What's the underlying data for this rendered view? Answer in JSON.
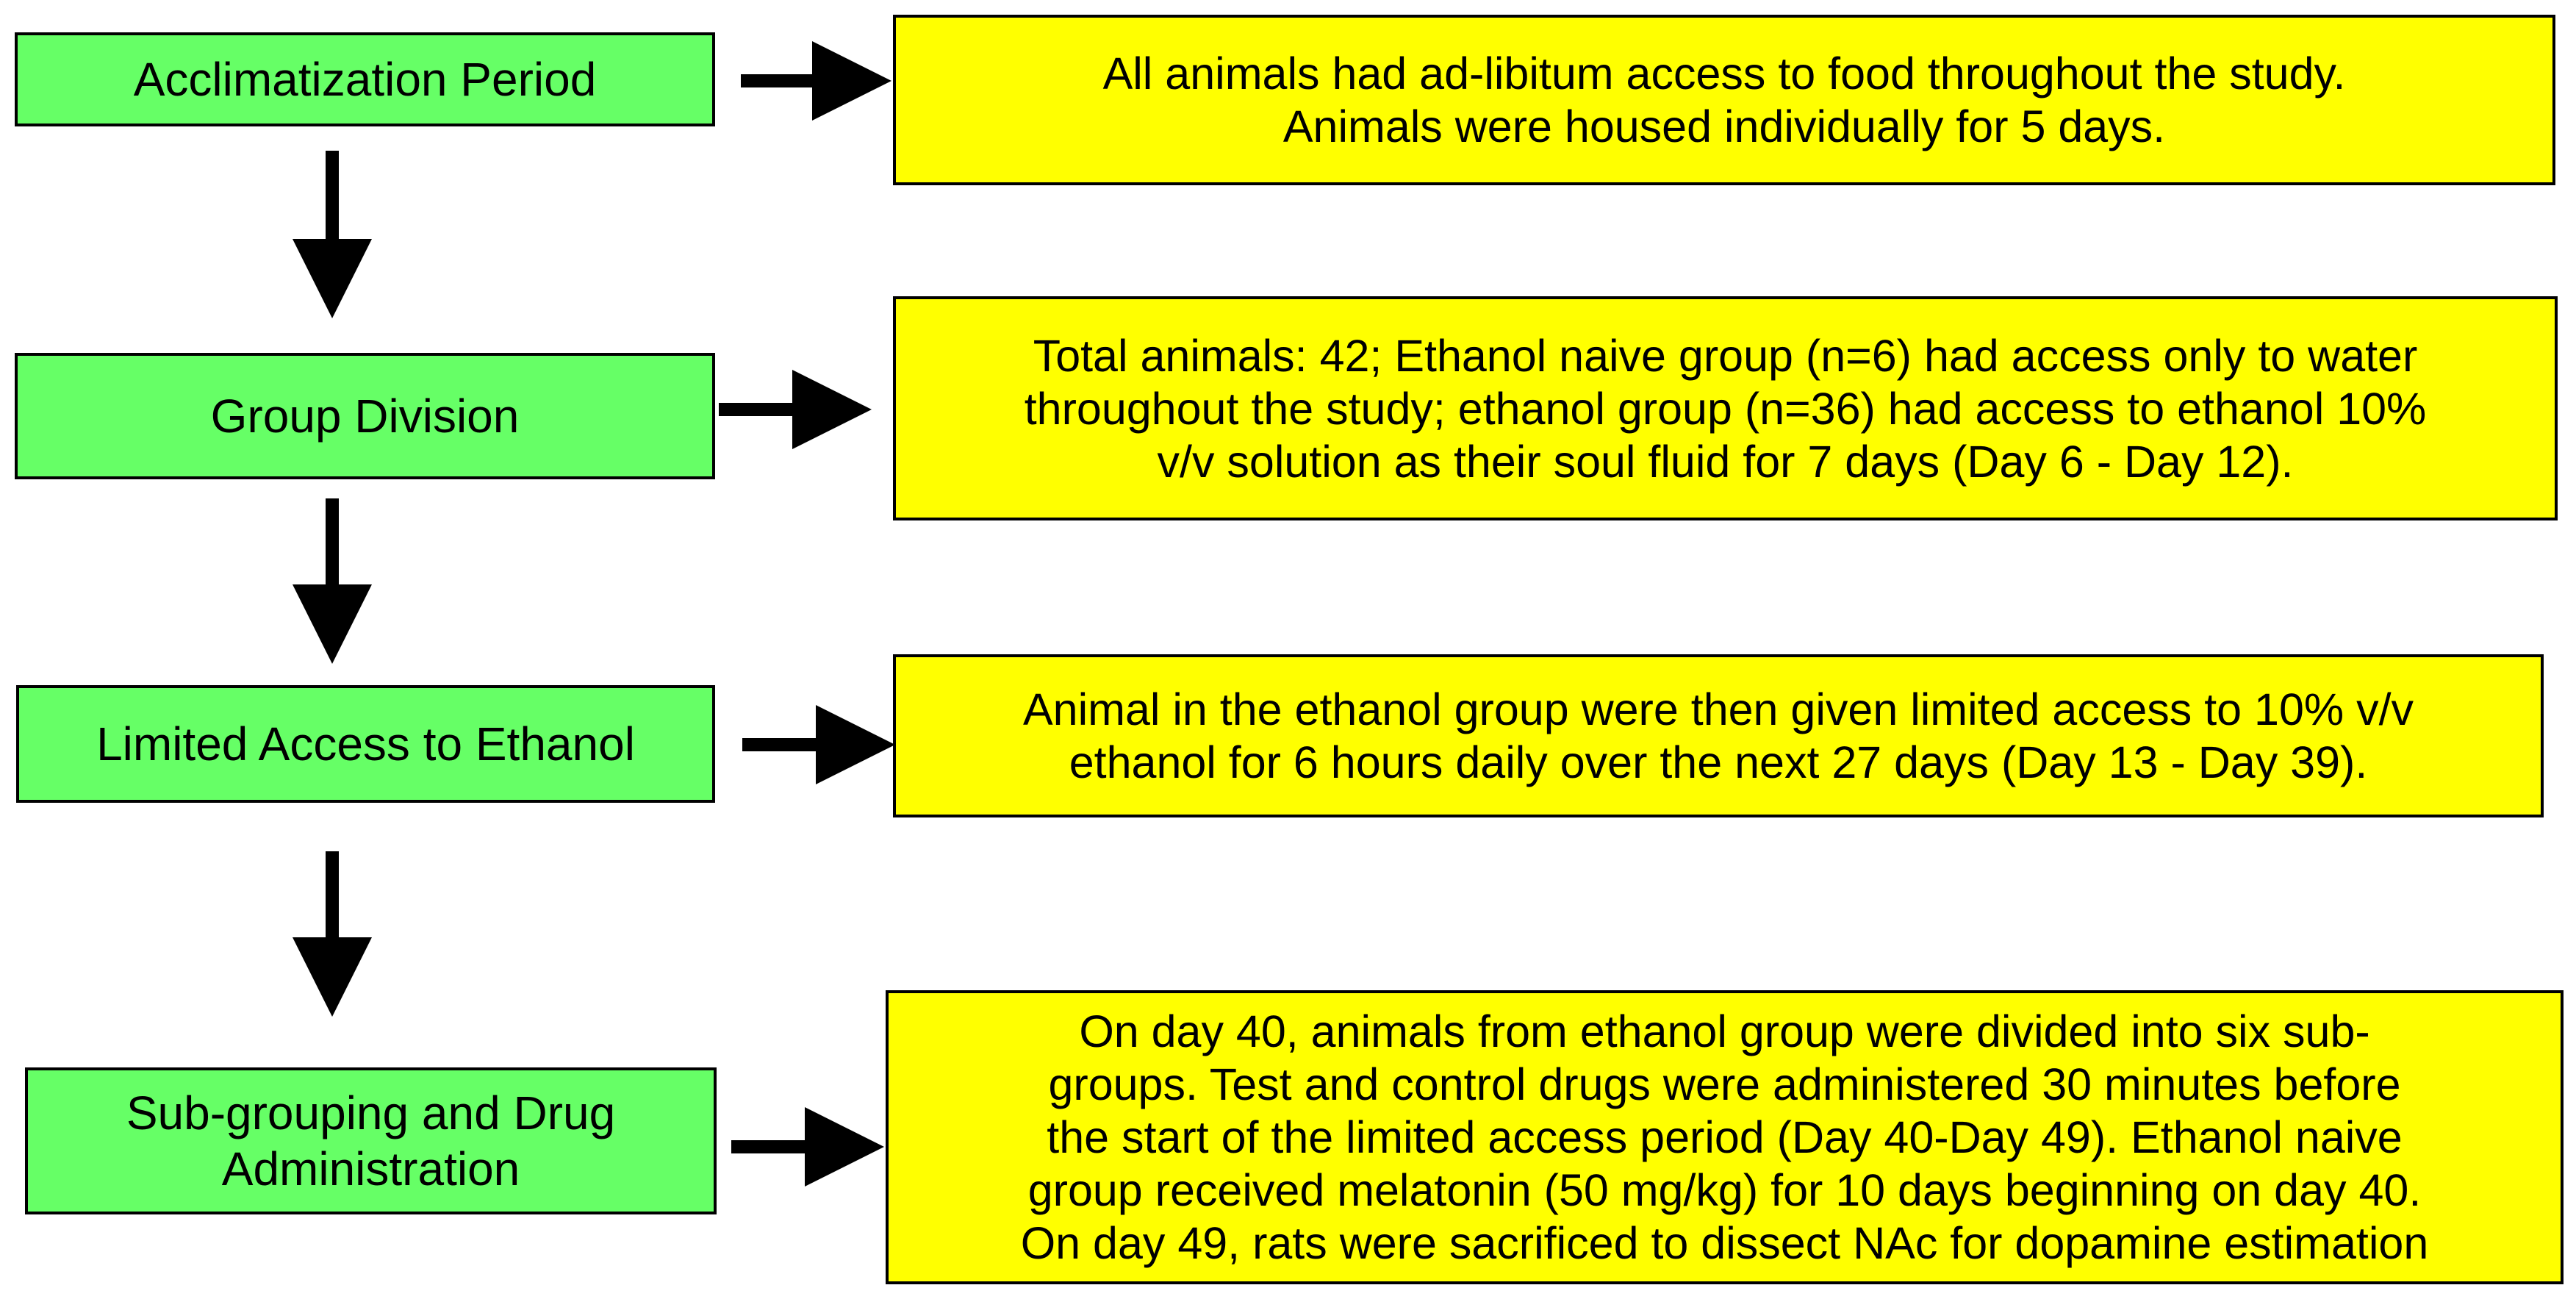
{
  "colors": {
    "step_fill": "#66ff66",
    "note_fill": "#ffff00",
    "border": "#000000",
    "arrow": "#000000"
  },
  "steps": [
    {
      "label": "Acclimatization Period",
      "description": "All animals had ad-libitum access to food throughout the study.\nAnimals were housed individually for 5 days."
    },
    {
      "label": "Group Division",
      "description": "Total animals: 42; Ethanol naive group (n=6) had access only to water\nthroughout the study; ethanol group (n=36) had access to ethanol 10%\nv/v solution as their soul fluid for 7 days (Day 6 - Day 12)."
    },
    {
      "label": "Limited Access to Ethanol",
      "description": "Animal in the ethanol group were then given limited access to 10% v/v\nethanol for 6 hours daily over the next 27 days (Day 13 - Day 39)."
    },
    {
      "label": "Sub-grouping and Drug\nAdministration",
      "description": "On day 40, animals from ethanol group were divided into six sub-\ngroups. Test and control drugs were administered 30 minutes before\nthe start of the limited access period (Day 40-Day 49). Ethanol naive\ngroup received melatonin (50 mg/kg) for 10 days beginning on day 40.\nOn day 49, rats were sacrificed to dissect NAc for dopamine estimation"
    }
  ]
}
